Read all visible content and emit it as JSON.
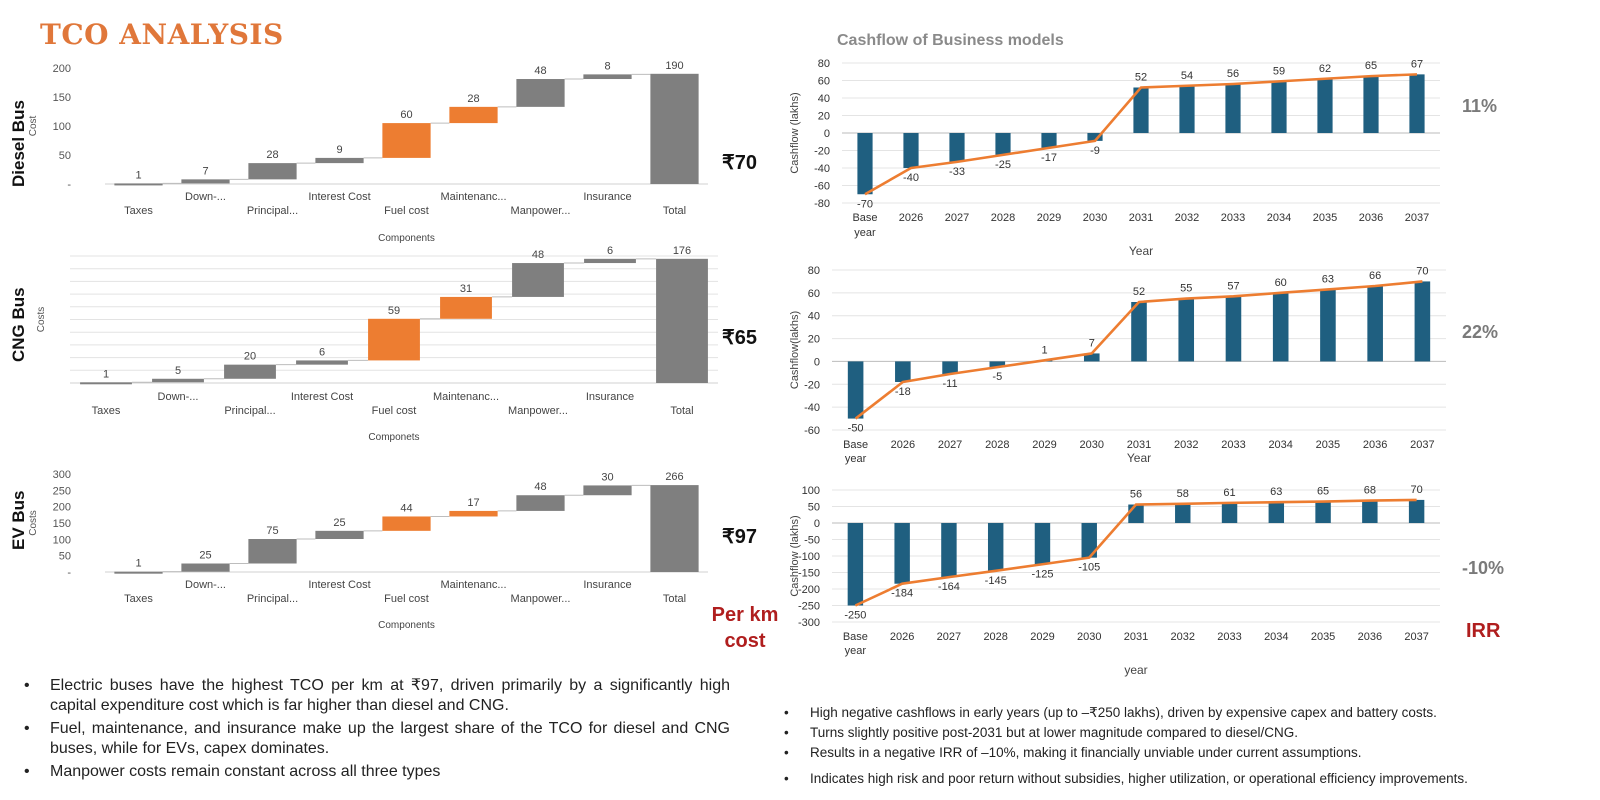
{
  "page": {
    "title": "TCO ANALYSIS",
    "cashflow_title": "Cashflow of Business models",
    "per_km_label": "Per km cost",
    "irr_label": "IRR"
  },
  "buses": [
    {
      "label": "Diesel Bus",
      "per_km": "₹70",
      "irr": "11%"
    },
    {
      "label": "CNG Bus",
      "per_km": "₹65",
      "irr": "22%"
    },
    {
      "label": "EV Bus",
      "per_km": "₹97",
      "irr": "-10%"
    }
  ],
  "colors": {
    "gray_bar": "#7f7f7f",
    "orange_bar": "#ed7d31",
    "blue_bar": "#1f5f80",
    "line": "#ed7d31",
    "title": "#e0773a",
    "red": "#b01e1e"
  },
  "chart_data": [
    {
      "type": "waterfall",
      "name": "diesel",
      "categories": [
        "Taxes",
        "Down-...",
        "Principal...",
        "Interest Cost",
        "Fuel cost",
        "Maintenanc...",
        "Manpower...",
        "Insurance",
        "Total"
      ],
      "values": [
        1,
        7,
        28,
        9,
        60,
        28,
        48,
        8,
        190
      ],
      "highlight": [
        "Fuel cost",
        "Maintenanc..."
      ],
      "xlabel": "Components",
      "ylabel": "Cost",
      "ylim": [
        0,
        200
      ],
      "yticks": [
        "-",
        "50",
        "100",
        "150",
        "200"
      ]
    },
    {
      "type": "waterfall",
      "name": "cng",
      "categories": [
        "Taxes",
        "Down-...",
        "Principal...",
        "Interest Cost",
        "Fuel cost",
        "Maintenanc...",
        "Manpower...",
        "Insurance",
        "Total"
      ],
      "values": [
        1,
        5,
        20,
        6,
        59,
        31,
        48,
        6,
        176
      ],
      "highlight": [
        "Fuel cost",
        "Maintenanc..."
      ],
      "xlabel": "Componets",
      "ylabel": "Costs",
      "ylim": [
        0,
        180
      ]
    },
    {
      "type": "waterfall",
      "name": "ev",
      "categories": [
        "Taxes",
        "Down-...",
        "Principal...",
        "Interest Cost",
        "Fuel cost",
        "Maintenanc...",
        "Manpower...",
        "Insurance",
        "Total"
      ],
      "values": [
        1,
        25,
        75,
        25,
        44,
        17,
        48,
        30,
        266
      ],
      "highlight": [
        "Fuel cost",
        "Maintenanc..."
      ],
      "xlabel": "Components",
      "ylabel": "Costs",
      "ylim": [
        0,
        300
      ],
      "yticks": [
        "-",
        "50",
        "100",
        "150",
        "200",
        "250",
        "300"
      ]
    },
    {
      "type": "bar+line",
      "name": "diesel-cashflow",
      "categories": [
        "Base year",
        "2026",
        "2027",
        "2028",
        "2029",
        "2030",
        "2031",
        "2032",
        "2033",
        "2034",
        "2035",
        "2036",
        "2037"
      ],
      "values": [
        -70,
        -40,
        -33,
        -25,
        -17,
        -9,
        52,
        54,
        56,
        59,
        62,
        65,
        67
      ],
      "xlabel": "Year",
      "ylabel": "Cashflow (lakhs)",
      "ylim": [
        -80,
        80
      ],
      "yticks": [
        -80,
        -60,
        -40,
        -20,
        0,
        20,
        40,
        60,
        80
      ]
    },
    {
      "type": "bar+line",
      "name": "cng-cashflow",
      "categories": [
        "Base year",
        "2026",
        "2027",
        "2028",
        "2029",
        "2030",
        "2031",
        "2032",
        "2033",
        "2034",
        "2035",
        "2036",
        "2037"
      ],
      "values": [
        -50,
        -18,
        -11,
        -5,
        1,
        7,
        52,
        55,
        57,
        60,
        63,
        66,
        70
      ],
      "xlabel": "Year",
      "ylabel": "Cashflow(lakhs)",
      "ylim": [
        -60,
        80
      ],
      "yticks": [
        -60,
        -40,
        -20,
        0,
        20,
        40,
        60,
        80
      ]
    },
    {
      "type": "bar+line",
      "name": "ev-cashflow",
      "categories": [
        "Base year",
        "2026",
        "2027",
        "2028",
        "2029",
        "2030",
        "2031",
        "2032",
        "2033",
        "2034",
        "2035",
        "2036",
        "2037"
      ],
      "values": [
        -250,
        -184,
        -164,
        -145,
        -125,
        -105,
        56,
        58,
        61,
        63,
        65,
        68,
        70
      ],
      "xlabel": "year",
      "ylabel": "Cashflow (lakhs)",
      "ylim": [
        -300,
        100
      ],
      "yticks": [
        -300,
        -250,
        -200,
        -150,
        -100,
        -50,
        0,
        50,
        100
      ]
    }
  ],
  "notes_left": [
    "Electric buses have the highest TCO per km at ₹97, driven primarily by a significantly high capital expenditure cost which is far higher than diesel and CNG.",
    "Fuel, maintenance, and insurance make up the largest share of the TCO for diesel and CNG buses, while for EVs, capex dominates.",
    "Manpower costs remain constant across all three types"
  ],
  "notes_right": [
    "High negative cashflows in early years (up to –₹250 lakhs), driven by expensive capex and battery costs.",
    "Turns slightly positive post-2031 but at lower magnitude compared to diesel/CNG.",
    "Results in a negative IRR of –10%, making it financially unviable under current assumptions.",
    "Indicates high risk and poor return without subsidies, higher utilization, or operational efficiency improvements."
  ]
}
